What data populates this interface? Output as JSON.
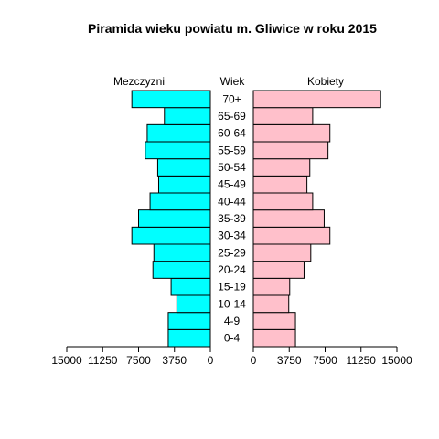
{
  "chart_data": {
    "type": "bar",
    "subtype": "population-pyramid",
    "title": "Piramida wieku powiatu m. Gliwice w roku 2015",
    "center_header": "Wiek",
    "categories": [
      "0-4",
      "4-9",
      "10-14",
      "15-19",
      "20-24",
      "25-29",
      "30-34",
      "35-39",
      "40-44",
      "45-49",
      "50-54",
      "55-59",
      "60-64",
      "65-69",
      "70+"
    ],
    "series": [
      {
        "name": "Mezczyzni",
        "side": "left",
        "color": "#00ffff",
        "values": [
          4400,
          4400,
          3500,
          4100,
          6000,
          5900,
          8200,
          7500,
          6300,
          5400,
          5500,
          6800,
          6600,
          4800,
          8200
        ]
      },
      {
        "name": "Kobiety",
        "side": "right",
        "color": "#ffc0cb",
        "values": [
          4400,
          4400,
          3700,
          3800,
          5300,
          6000,
          8000,
          7400,
          6200,
          5600,
          5900,
          7800,
          8000,
          6200,
          13300
        ]
      }
    ],
    "xlim": [
      0,
      15000
    ],
    "ticks": [
      {
        "value": 15000,
        "label": "15000"
      },
      {
        "value": 11250,
        "label": "11250"
      },
      {
        "value": 7500,
        "label": "7500"
      },
      {
        "value": 3750,
        "label": "3750"
      },
      {
        "value": 0,
        "label": "0"
      }
    ],
    "grid": false,
    "legend": "headers above columns"
  }
}
